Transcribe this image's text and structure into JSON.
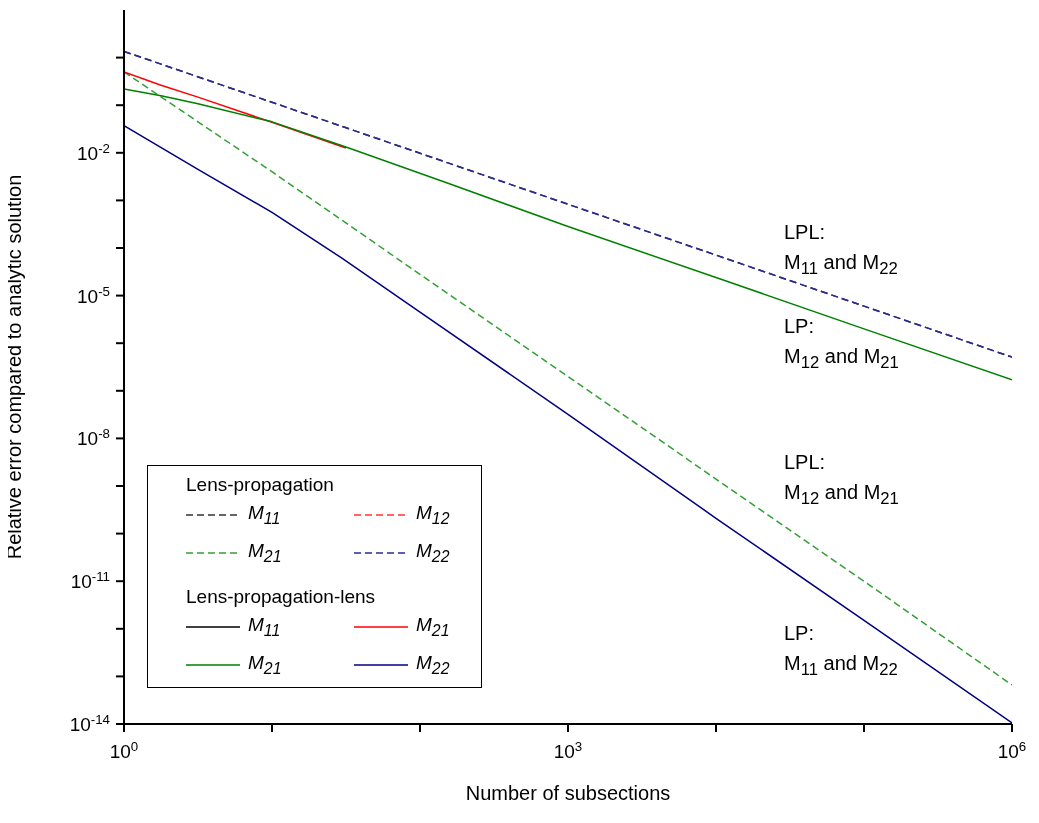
{
  "chart_data": {
    "type": "line",
    "xlabel": "Number of subsections",
    "ylabel": "Relative error compared to analytic solution",
    "log": "xy",
    "legend": "bottom left",
    "xlim": [
      1,
      1000000
    ],
    "ylim": [
      1e-14,
      10
    ],
    "xticks": [
      {
        "value": 1,
        "label": "10$^{0}$"
      },
      {
        "value": 10,
        "label": null
      },
      {
        "value": 100,
        "label": null
      },
      {
        "value": 1000,
        "label": "10$^{3}$"
      },
      {
        "value": 10000,
        "label": null
      },
      {
        "value": 100000,
        "label": null
      },
      {
        "value": 1000000,
        "label": "10$^{6}$"
      }
    ],
    "yticks": [
      {
        "value": 1e-14,
        "label": "10$^{-14}$"
      },
      {
        "value": 1e-13,
        "label": null
      },
      {
        "value": 1e-12,
        "label": null
      },
      {
        "value": 1e-11,
        "label": "10$^{-11}$"
      },
      {
        "value": 1e-10,
        "label": null
      },
      {
        "value": 1e-09,
        "label": null
      },
      {
        "value": 1e-08,
        "label": "10$^{-8}$"
      },
      {
        "value": 1e-07,
        "label": null
      },
      {
        "value": 1e-06,
        "label": null
      },
      {
        "value": 1e-05,
        "label": "10$^{-5}$"
      },
      {
        "value": 0.0001,
        "label": null
      },
      {
        "value": 0.001,
        "label": null
      },
      {
        "value": 0.01,
        "label": "10$^{-2}$"
      },
      {
        "value": 0.1,
        "label": null
      },
      {
        "value": 1,
        "label": null
      }
    ],
    "series": [
      {
        "name": "M$_{11}$",
        "color": "#333333",
        "line_style": "dashed",
        "x": [
          1,
          10,
          100,
          1000,
          10000,
          100000,
          1000000
        ],
        "values": [
          1.35,
          0.115,
          0.0098,
          0.00083,
          7.1e-05,
          6e-06,
          5.1e-07
        ]
      },
      {
        "name": "M$_{12}$",
        "color": "#ff3333",
        "line_style": "dashed"
      },
      {
        "name": "M$_{21}$",
        "color": "#33a033",
        "line_style": "dashed",
        "x": [
          1,
          10,
          100,
          1000,
          10000,
          100000,
          1000000
        ],
        "values": [
          0.5,
          0.004,
          2.8e-05,
          2e-07,
          1.4e-09,
          1e-11,
          6.6e-14
        ]
      },
      {
        "name": "M$_{22}$",
        "color": "#2a2a9a",
        "line_style": "dashed",
        "x": [
          1,
          10,
          100,
          1000,
          10000,
          100000,
          1000000
        ],
        "values": [
          1.35,
          0.115,
          0.0098,
          0.00083,
          7.1e-05,
          6e-06,
          5.1e-07
        ]
      },
      {
        "name": "M$_{11}$",
        "color": "#000000",
        "line_style": "solid"
      },
      {
        "name": "M$_{21}$",
        "color": "#ff0000",
        "line_style": "solid",
        "x": [
          1,
          1.78,
          3.16,
          10,
          31.6
        ],
        "values": [
          0.5,
          0.263,
          0.148,
          0.0437,
          0.0126
        ]
      },
      {
        "name": "M$_{21}$",
        "color": "#008000",
        "line_style": "solid",
        "x": [
          1,
          1.78,
          3.16,
          10,
          31.6,
          158,
          1000,
          10000,
          100000,
          1000000
        ],
        "values": [
          0.219,
          0.158,
          0.107,
          0.0447,
          0.0132,
          0.00224,
          0.000282,
          2.4e-05,
          2e-06,
          1.7e-07
        ]
      },
      {
        "name": "M$_{22}$",
        "color": "#000080",
        "line_style": "solid",
        "x": [
          1,
          3.16,
          10,
          29.5,
          100,
          1000,
          10000,
          100000,
          1000000
        ],
        "values": [
          0.037,
          0.0045,
          0.00056,
          6.2e-05,
          4.5e-06,
          3.2e-08,
          2.1e-10,
          1.5e-12,
          1.05e-14
        ]
      }
    ],
    "annotations": [
      "Lens-propagation",
      "Lens-propagation-lens",
      "LPL:\nM$_{11}$ and M$_{22}$",
      "LP:\nM$_{12}$ and M$_{21}$",
      "LPL:\nM$_{12}$ and M$_{21}$",
      "LP:\nM$_{11}$ and M$_{22}$"
    ]
  }
}
